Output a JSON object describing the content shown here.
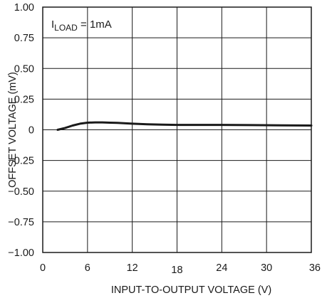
{
  "chart_data": {
    "type": "line",
    "xlabel": "INPUT-TO-OUTPUT VOLTAGE (V)",
    "ylabel": "OFFSET VOLTAGE (mV)",
    "xlim": [
      0,
      36
    ],
    "ylim": [
      -1.0,
      1.0
    ],
    "x_ticks": [
      0,
      6,
      12,
      18,
      24,
      30,
      36
    ],
    "x_tick_labels": [
      "0",
      "6",
      "12",
      "18",
      "24",
      "30",
      "36"
    ],
    "y_ticks": [
      1.0,
      0.75,
      0.5,
      0.25,
      0,
      -0.25,
      -0.5,
      -0.75,
      -1.0
    ],
    "y_tick_labels": [
      "1.00",
      "0.75",
      "0.50",
      "0.25",
      "0",
      "−0.25",
      "−0.50",
      "−0.75",
      "−1.00"
    ],
    "grid": true,
    "annotation": {
      "prefix": "I",
      "subscript": "LOAD",
      "suffix": " = 1mA"
    },
    "series": [
      {
        "color": "#1a1a1a",
        "x": [
          2,
          3,
          4,
          5,
          6,
          7,
          8,
          9,
          10,
          12,
          14,
          16,
          18,
          20,
          24,
          28,
          32,
          36
        ],
        "values": [
          0.0,
          0.015,
          0.035,
          0.05,
          0.058,
          0.06,
          0.06,
          0.058,
          0.056,
          0.05,
          0.045,
          0.042,
          0.04,
          0.04,
          0.04,
          0.038,
          0.036,
          0.035
        ]
      }
    ]
  },
  "colors": {
    "axis": "#1a1a1a",
    "grid": "#1a1a1a",
    "background": "#ffffff"
  }
}
